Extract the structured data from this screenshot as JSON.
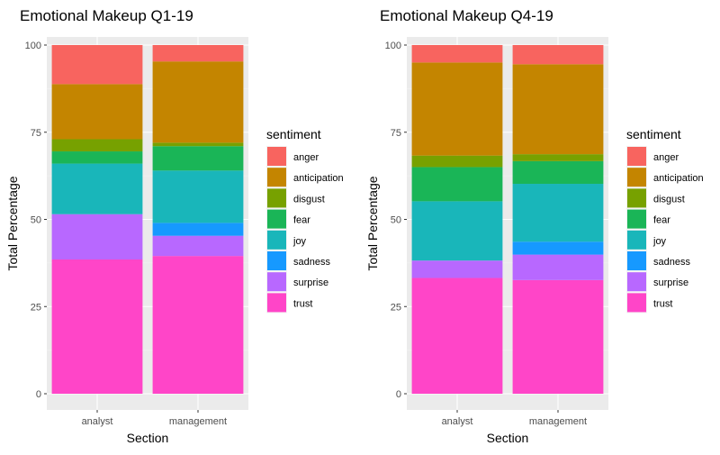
{
  "chart_data": [
    {
      "type": "bar",
      "stacked": true,
      "title": "Emotional Makeup Q1-19",
      "xlabel": "Section",
      "ylabel": "Total Percentage",
      "categories": [
        "analyst",
        "management"
      ],
      "ylim": [
        0,
        100
      ],
      "yticks": [
        0,
        25,
        50,
        75,
        100
      ],
      "grid": true,
      "legend_title": "sentiment",
      "legend_position": "right",
      "series": [
        {
          "name": "trust",
          "color": "#FF45C8",
          "values": [
            38.5,
            39.5
          ]
        },
        {
          "name": "surprise",
          "color": "#B868FF",
          "values": [
            13.0,
            5.8
          ]
        },
        {
          "name": "sadness",
          "color": "#1699FF",
          "values": [
            0.0,
            3.7
          ]
        },
        {
          "name": "joy",
          "color": "#19B6BA",
          "values": [
            14.5,
            15.0
          ]
        },
        {
          "name": "fear",
          "color": "#1AB557",
          "values": [
            3.5,
            7.0
          ]
        },
        {
          "name": "disgust",
          "color": "#77A100",
          "values": [
            3.5,
            1.0
          ]
        },
        {
          "name": "anticipation",
          "color": "#C48500",
          "values": [
            15.8,
            23.3
          ]
        },
        {
          "name": "anger",
          "color": "#F8645F",
          "values": [
            11.2,
            4.7
          ]
        }
      ]
    },
    {
      "type": "bar",
      "stacked": true,
      "title": "Emotional Makeup Q4-19",
      "xlabel": "Section",
      "ylabel": "Total Percentage",
      "categories": [
        "analyst",
        "management"
      ],
      "ylim": [
        0,
        100
      ],
      "yticks": [
        0,
        25,
        50,
        75,
        100
      ],
      "grid": true,
      "legend_title": "sentiment",
      "legend_position": "right",
      "series": [
        {
          "name": "trust",
          "color": "#FF45C8",
          "values": [
            33.2,
            32.6
          ]
        },
        {
          "name": "surprise",
          "color": "#B868FF",
          "values": [
            5.0,
            7.3
          ]
        },
        {
          "name": "sadness",
          "color": "#1699FF",
          "values": [
            0.0,
            3.7
          ]
        },
        {
          "name": "joy",
          "color": "#19B6BA",
          "values": [
            17.0,
            16.6
          ]
        },
        {
          "name": "fear",
          "color": "#1AB557",
          "values": [
            9.8,
            6.5
          ]
        },
        {
          "name": "disgust",
          "color": "#77A100",
          "values": [
            3.3,
            2.0
          ]
        },
        {
          "name": "anticipation",
          "color": "#C48500",
          "values": [
            26.7,
            25.8
          ]
        },
        {
          "name": "anger",
          "color": "#F8645F",
          "values": [
            5.0,
            5.5
          ]
        }
      ]
    }
  ]
}
